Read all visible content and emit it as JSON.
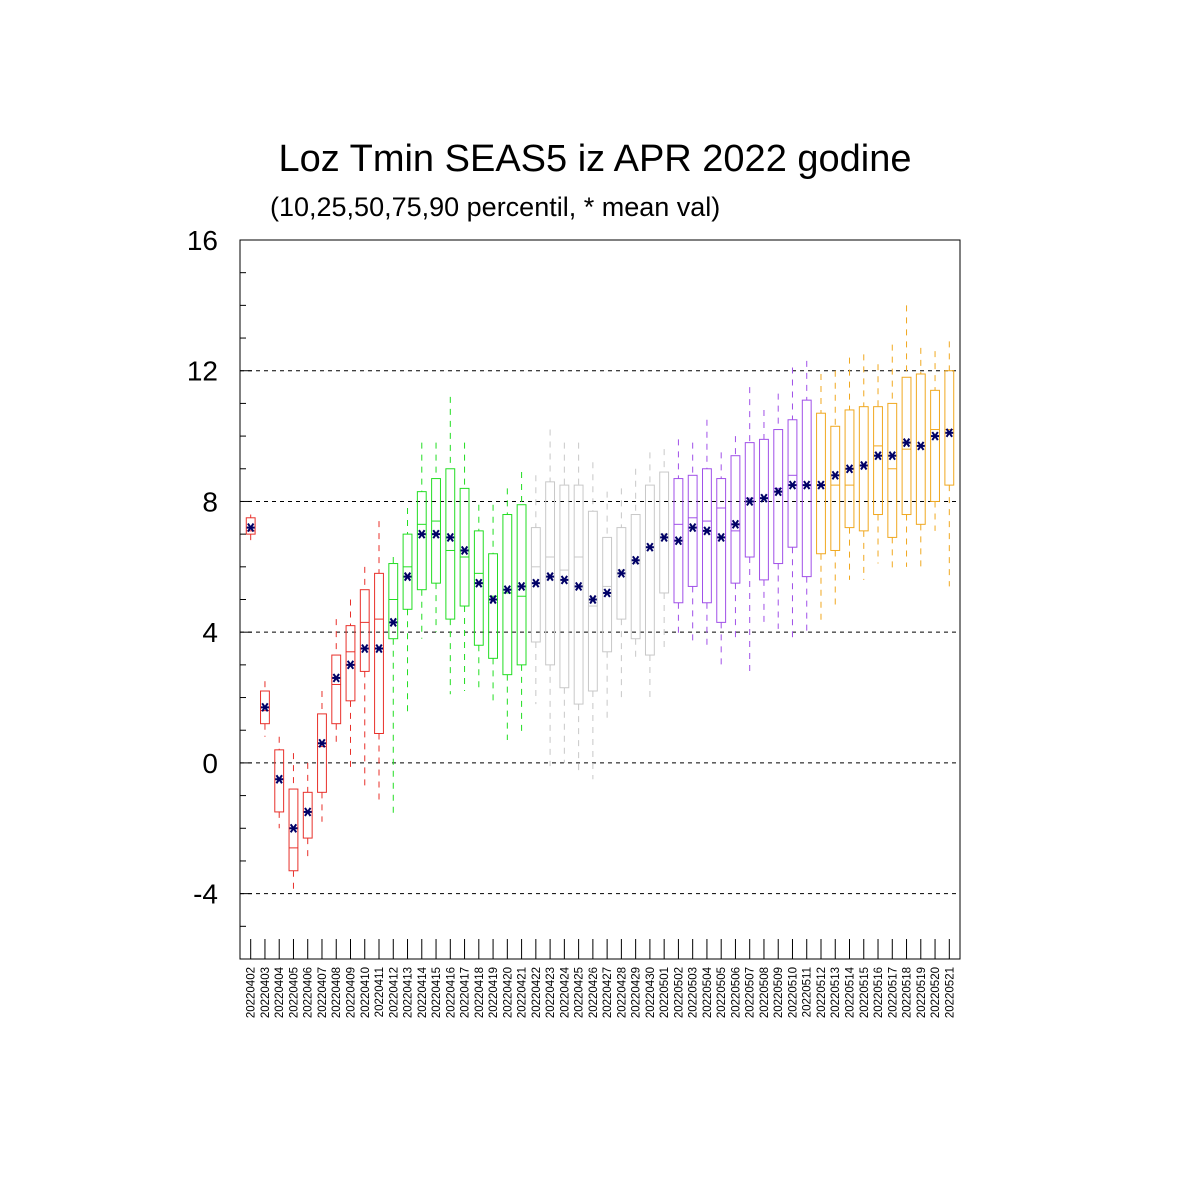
{
  "chart_data": {
    "type": "box",
    "title": "Loz Tmin SEAS5 iz APR 2022 godine",
    "subtitle": "(10,25,50,75,90 percentil, * mean val)",
    "xlabel": "",
    "ylabel": "",
    "ylim": [
      -6,
      16
    ],
    "yticks": [
      -4,
      0,
      4,
      8,
      12,
      16
    ],
    "grid_lines_y": [
      -4,
      0,
      4,
      8,
      12,
      16
    ],
    "colors": {
      "apr_early": "#e8302a",
      "apr_mid": "#22dd22",
      "apr_late": "#c8c8c8",
      "may_early": "#a050e8",
      "may_late": "#f0a820",
      "mean_marker": "#000066"
    },
    "categories": [
      "20220402",
      "20220403",
      "20220404",
      "20220405",
      "20220406",
      "20220407",
      "20220408",
      "20220409",
      "20220410",
      "20220411",
      "20220412",
      "20220413",
      "20220414",
      "20220415",
      "20220416",
      "20220417",
      "20220418",
      "20220419",
      "20220420",
      "20220421",
      "20220422",
      "20220423",
      "20220424",
      "20220425",
      "20220426",
      "20220427",
      "20220428",
      "20220429",
      "20220430",
      "20220501",
      "20220502",
      "20220503",
      "20220504",
      "20220505",
      "20220506",
      "20220507",
      "20220508",
      "20220509",
      "20220510",
      "20220511",
      "20220512",
      "20220513",
      "20220514",
      "20220515",
      "20220516",
      "20220517",
      "20220518",
      "20220519",
      "20220520",
      "20220521"
    ],
    "series": [
      {
        "group": "apr_early",
        "p10": 6.8,
        "p25": 7.0,
        "p50": 7.1,
        "p75": 7.5,
        "p90": 7.6,
        "mean": 7.2
      },
      {
        "group": "apr_early",
        "p10": 0.8,
        "p25": 1.2,
        "p50": 1.6,
        "p75": 2.2,
        "p90": 2.5,
        "mean": 1.7
      },
      {
        "group": "apr_early",
        "p10": -2.0,
        "p25": -1.5,
        "p50": -0.5,
        "p75": 0.4,
        "p90": 0.8,
        "mean": -0.5
      },
      {
        "group": "apr_early",
        "p10": -4.0,
        "p25": -3.3,
        "p50": -2.6,
        "p75": -0.8,
        "p90": 0.3,
        "mean": -2.0
      },
      {
        "group": "apr_early",
        "p10": -3.0,
        "p25": -2.3,
        "p50": -1.5,
        "p75": -0.9,
        "p90": 0.0,
        "mean": -1.5
      },
      {
        "group": "apr_early",
        "p10": -1.8,
        "p25": -0.9,
        "p50": 0.5,
        "p75": 1.5,
        "p90": 2.2,
        "mean": 0.6
      },
      {
        "group": "apr_early",
        "p10": 0.6,
        "p25": 1.2,
        "p50": 2.4,
        "p75": 3.3,
        "p90": 4.4,
        "mean": 2.6
      },
      {
        "group": "apr_early",
        "p10": -0.2,
        "p25": 1.9,
        "p50": 3.4,
        "p75": 4.2,
        "p90": 5.0,
        "mean": 3.0
      },
      {
        "group": "apr_early",
        "p10": -0.7,
        "p25": 2.8,
        "p50": 4.3,
        "p75": 5.3,
        "p90": 6.0,
        "mean": 3.5
      },
      {
        "group": "apr_early",
        "p10": -1.2,
        "p25": 0.9,
        "p50": 4.4,
        "p75": 5.8,
        "p90": 7.4,
        "mean": 3.5
      },
      {
        "group": "apr_mid",
        "p10": -1.7,
        "p25": 3.8,
        "p50": 5.0,
        "p75": 6.1,
        "p90": 6.3,
        "mean": 4.3
      },
      {
        "group": "apr_mid",
        "p10": 1.5,
        "p25": 4.7,
        "p50": 6.0,
        "p75": 7.0,
        "p90": 7.8,
        "mean": 5.7
      },
      {
        "group": "apr_mid",
        "p10": 3.8,
        "p25": 5.3,
        "p50": 7.3,
        "p75": 8.3,
        "p90": 9.8,
        "mean": 7.0
      },
      {
        "group": "apr_mid",
        "p10": 4.0,
        "p25": 5.5,
        "p50": 7.4,
        "p75": 8.7,
        "p90": 9.8,
        "mean": 7.0
      },
      {
        "group": "apr_mid",
        "p10": 2.1,
        "p25": 4.4,
        "p50": 6.5,
        "p75": 9.0,
        "p90": 11.2,
        "mean": 6.9
      },
      {
        "group": "apr_mid",
        "p10": 2.2,
        "p25": 4.8,
        "p50": 6.3,
        "p75": 8.4,
        "p90": 9.8,
        "mean": 6.5
      },
      {
        "group": "apr_mid",
        "p10": 2.3,
        "p25": 3.6,
        "p50": 5.8,
        "p75": 7.1,
        "p90": 7.9,
        "mean": 5.5
      },
      {
        "group": "apr_mid",
        "p10": 1.8,
        "p25": 3.2,
        "p50": 5.1,
        "p75": 6.4,
        "p90": 7.9,
        "mean": 5.0
      },
      {
        "group": "apr_mid",
        "p10": 0.7,
        "p25": 2.7,
        "p50": 5.2,
        "p75": 7.6,
        "p90": 8.4,
        "mean": 5.3
      },
      {
        "group": "apr_mid",
        "p10": 0.9,
        "p25": 3.0,
        "p50": 5.1,
        "p75": 7.9,
        "p90": 8.9,
        "mean": 5.4
      },
      {
        "group": "apr_late",
        "p10": 1.8,
        "p25": 3.7,
        "p50": 6.0,
        "p75": 7.2,
        "p90": 8.8,
        "mean": 5.5
      },
      {
        "group": "apr_late",
        "p10": -0.1,
        "p25": 3.0,
        "p50": 6.3,
        "p75": 8.6,
        "p90": 10.2,
        "mean": 5.7
      },
      {
        "group": "apr_late",
        "p10": 0.0,
        "p25": 2.3,
        "p50": 5.9,
        "p75": 8.5,
        "p90": 9.8,
        "mean": 5.6
      },
      {
        "group": "apr_late",
        "p10": -0.4,
        "p25": 1.8,
        "p50": 6.3,
        "p75": 8.5,
        "p90": 9.8,
        "mean": 5.4
      },
      {
        "group": "apr_late",
        "p10": -0.5,
        "p25": 2.2,
        "p50": 4.8,
        "p75": 7.7,
        "p90": 9.2,
        "mean": 5.0
      },
      {
        "group": "apr_late",
        "p10": 1.2,
        "p25": 3.4,
        "p50": 5.4,
        "p75": 6.9,
        "p90": 8.3,
        "mean": 5.2
      },
      {
        "group": "apr_late",
        "p10": 2.0,
        "p25": 4.4,
        "p50": 5.9,
        "p75": 7.2,
        "p90": 8.4,
        "mean": 5.8
      },
      {
        "group": "apr_late",
        "p10": 3.2,
        "p25": 3.8,
        "p50": 6.1,
        "p75": 7.6,
        "p90": 9.0,
        "mean": 6.2
      },
      {
        "group": "apr_late",
        "p10": 2.0,
        "p25": 3.3,
        "p50": 6.6,
        "p75": 8.5,
        "p90": 9.5,
        "mean": 6.6
      },
      {
        "group": "apr_late",
        "p10": 3.5,
        "p25": 5.2,
        "p50": 7.0,
        "p75": 8.9,
        "p90": 9.6,
        "mean": 6.9
      },
      {
        "group": "may_early",
        "p10": 3.8,
        "p25": 4.9,
        "p50": 7.3,
        "p75": 8.7,
        "p90": 9.9,
        "mean": 6.8
      },
      {
        "group": "may_early",
        "p10": 3.7,
        "p25": 5.4,
        "p50": 7.5,
        "p75": 8.8,
        "p90": 9.8,
        "mean": 7.2
      },
      {
        "group": "may_early",
        "p10": 3.6,
        "p25": 4.9,
        "p50": 7.4,
        "p75": 9.0,
        "p90": 10.5,
        "mean": 7.1
      },
      {
        "group": "may_early",
        "p10": 2.9,
        "p25": 4.3,
        "p50": 7.8,
        "p75": 8.7,
        "p90": 9.5,
        "mean": 6.9
      },
      {
        "group": "may_early",
        "p10": 3.8,
        "p25": 5.5,
        "p50": 7.1,
        "p75": 9.4,
        "p90": 10.0,
        "mean": 7.3
      },
      {
        "group": "may_early",
        "p10": 2.7,
        "p25": 6.3,
        "p50": 8.1,
        "p75": 9.8,
        "p90": 11.5,
        "mean": 8.0
      },
      {
        "group": "may_early",
        "p10": 4.3,
        "p25": 5.6,
        "p50": 8.1,
        "p75": 9.9,
        "p90": 10.8,
        "mean": 8.1
      },
      {
        "group": "may_early",
        "p10": 4.1,
        "p25": 6.1,
        "p50": 8.4,
        "p75": 10.2,
        "p90": 11.3,
        "mean": 8.3
      },
      {
        "group": "may_early",
        "p10": 3.7,
        "p25": 6.6,
        "p50": 8.8,
        "p75": 10.5,
        "p90": 12.1,
        "mean": 8.5
      },
      {
        "group": "may_early",
        "p10": 3.9,
        "p25": 5.7,
        "p50": 8.5,
        "p75": 11.1,
        "p90": 12.3,
        "mean": 8.5
      },
      {
        "group": "may_late",
        "p10": 4.2,
        "p25": 6.4,
        "p50": 8.5,
        "p75": 10.7,
        "p90": 11.9,
        "mean": 8.5
      },
      {
        "group": "may_late",
        "p10": 4.8,
        "p25": 6.5,
        "p50": 8.5,
        "p75": 10.3,
        "p90": 12.0,
        "mean": 8.8
      },
      {
        "group": "may_late",
        "p10": 5.6,
        "p25": 7.2,
        "p50": 8.5,
        "p75": 10.8,
        "p90": 12.4,
        "mean": 9.0
      },
      {
        "group": "may_late",
        "p10": 5.6,
        "p25": 7.1,
        "p50": 9.1,
        "p75": 10.9,
        "p90": 12.5,
        "mean": 9.1
      },
      {
        "group": "may_late",
        "p10": 6.1,
        "p25": 7.6,
        "p50": 9.7,
        "p75": 10.9,
        "p90": 12.2,
        "mean": 9.4
      },
      {
        "group": "may_late",
        "p10": 5.8,
        "p25": 6.9,
        "p50": 9.0,
        "p75": 11.0,
        "p90": 12.8,
        "mean": 9.4
      },
      {
        "group": "may_late",
        "p10": 6.0,
        "p25": 7.6,
        "p50": 9.6,
        "p75": 11.8,
        "p90": 14.0,
        "mean": 9.8
      },
      {
        "group": "may_late",
        "p10": 5.9,
        "p25": 7.3,
        "p50": 9.7,
        "p75": 11.9,
        "p90": 12.7,
        "mean": 9.7
      },
      {
        "group": "may_late",
        "p10": 7.1,
        "p25": 8.0,
        "p50": 10.2,
        "p75": 11.4,
        "p90": 12.6,
        "mean": 10.0
      },
      {
        "group": "may_late",
        "p10": 5.4,
        "p25": 8.5,
        "p50": 10.2,
        "p75": 12.0,
        "p90": 12.9,
        "mean": 10.1
      }
    ]
  }
}
